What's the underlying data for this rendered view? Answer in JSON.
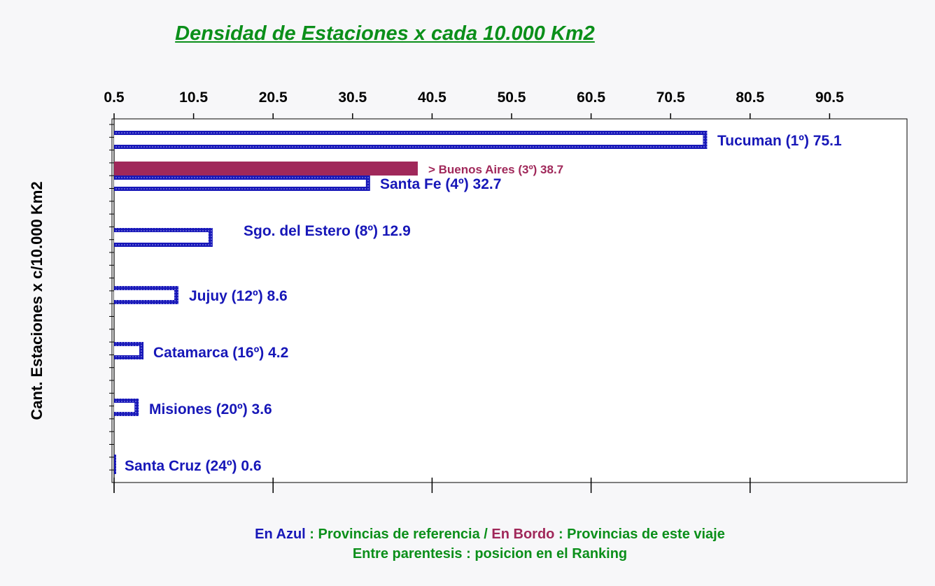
{
  "chart_data": {
    "type": "bar",
    "orientation": "horizontal",
    "title": "Densidad de Estaciones x cada 10.000 Km2",
    "ylabel": "Cant. Estaciones x c/10.000 Km2",
    "xticks": [
      "0.5",
      "10.5",
      "20.5",
      "30.5",
      "40.5",
      "50.5",
      "60.5",
      "70.5",
      "80.5",
      "90.5"
    ],
    "xlim": [
      0.5,
      100.5
    ],
    "axis_position": "top",
    "grid": false,
    "bars": [
      {
        "name": "Tucuman",
        "rank": "(1º)",
        "value": 75.1,
        "label": "Tucuman (1º) 75.1",
        "style": "blue"
      },
      {
        "name": "Buenos Aires",
        "rank": "(3º)",
        "value": 38.7,
        "label": "> Buenos Aires (3º) 38.7",
        "style": "bordo"
      },
      {
        "name": "Santa Fe",
        "rank": "(4º)",
        "value": 32.7,
        "label": "Santa Fe (4º) 32.7",
        "style": "blue"
      },
      {
        "name": "Sgo. del Estero",
        "rank": "(8º)",
        "value": 12.9,
        "label": "Sgo. del Estero (8º) 12.9",
        "style": "blue"
      },
      {
        "name": "Jujuy",
        "rank": "(12º)",
        "value": 8.6,
        "label": "Jujuy (12º) 8.6",
        "style": "blue"
      },
      {
        "name": "Catamarca",
        "rank": "(16º)",
        "value": 4.2,
        "label": "Catamarca (16º) 4.2",
        "style": "blue"
      },
      {
        "name": "Misiones",
        "rank": "(20º)",
        "value": 3.6,
        "label": "Misiones (20º) 3.6",
        "style": "blue"
      },
      {
        "name": "Santa Cruz",
        "rank": "(24º)",
        "value": 0.6,
        "label": "Santa Cruz (24º) 0.6",
        "style": "blue"
      }
    ],
    "colors": {
      "blue": "#1717b8",
      "bordo": "#a0285a",
      "green": "#0b8f1a"
    }
  },
  "legend": {
    "line1": {
      "blue_word": "En Azul",
      "text1": " : Provincias de referencia / ",
      "bordo_word": "En Bordo",
      "text2": " : Provincias de este viaje"
    },
    "line2": "Entre parentesis : posicion en el Ranking"
  }
}
